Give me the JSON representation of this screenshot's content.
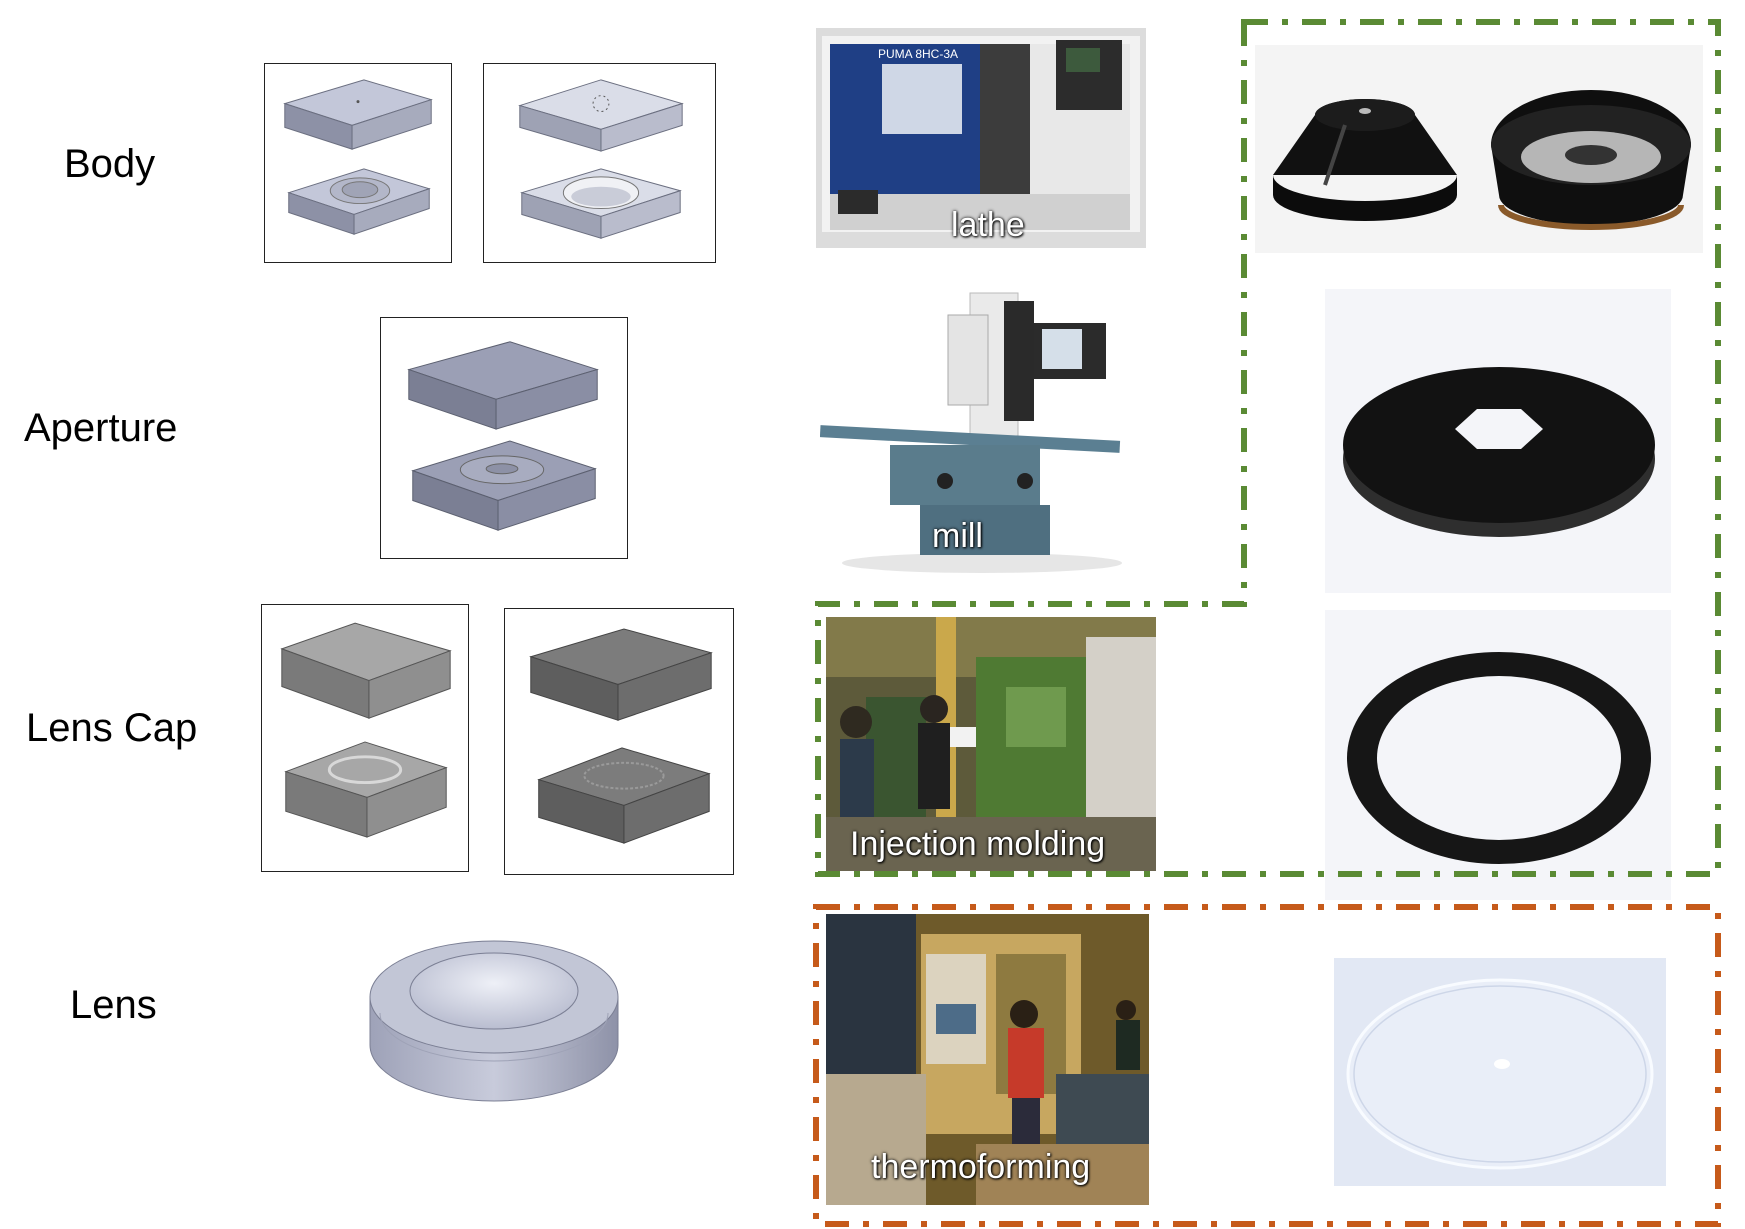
{
  "rows": [
    {
      "label": "Body"
    },
    {
      "label": "Aperture"
    },
    {
      "label": "Lens Cap"
    },
    {
      "label": "Lens"
    }
  ],
  "processes": {
    "lathe": "lathe",
    "mill": "mill",
    "injection_molding": "Injection molding",
    "thermoforming": "thermoforming"
  },
  "machine_plate": "PUMA 8HC-3A",
  "groups": {
    "machined_color": "#5a8a34",
    "thermoformed_color": "#c65a1a"
  }
}
